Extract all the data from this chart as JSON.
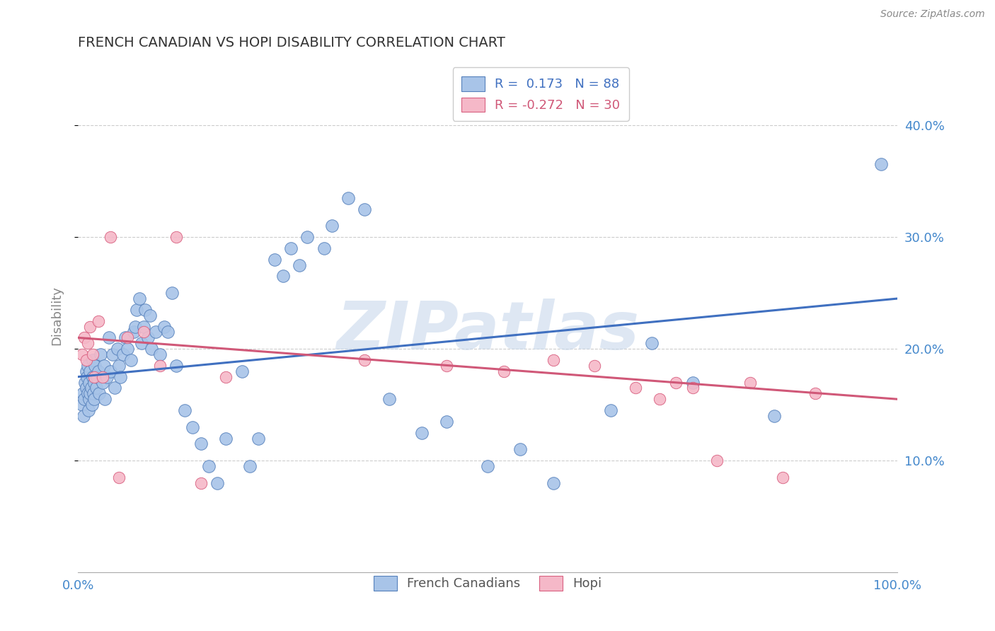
{
  "title": "FRENCH CANADIAN VS HOPI DISABILITY CORRELATION CHART",
  "source": "Source: ZipAtlas.com",
  "ylabel": "Disability",
  "xlim": [
    0.0,
    1.0
  ],
  "ylim": [
    0.0,
    0.46
  ],
  "xtick_vals": [
    0.0,
    1.0
  ],
  "xtick_labels": [
    "0.0%",
    "100.0%"
  ],
  "ytick_vals": [
    0.1,
    0.2,
    0.3,
    0.4
  ],
  "ytick_labels": [
    "10.0%",
    "20.0%",
    "30.0%",
    "40.0%"
  ],
  "blue_color": "#A8C4E8",
  "pink_color": "#F5B8C8",
  "blue_edge_color": "#5580BB",
  "pink_edge_color": "#D96080",
  "blue_line_color": "#4070C0",
  "pink_line_color": "#D05878",
  "blue_R": 0.173,
  "blue_N": 88,
  "pink_R": -0.272,
  "pink_N": 30,
  "blue_scatter_x": [
    0.005,
    0.006,
    0.007,
    0.008,
    0.009,
    0.01,
    0.01,
    0.011,
    0.012,
    0.012,
    0.013,
    0.014,
    0.014,
    0.015,
    0.015,
    0.016,
    0.017,
    0.018,
    0.018,
    0.019,
    0.02,
    0.02,
    0.021,
    0.022,
    0.023,
    0.025,
    0.026,
    0.028,
    0.03,
    0.032,
    0.033,
    0.035,
    0.038,
    0.04,
    0.042,
    0.045,
    0.048,
    0.05,
    0.052,
    0.055,
    0.058,
    0.06,
    0.065,
    0.068,
    0.07,
    0.072,
    0.075,
    0.078,
    0.08,
    0.082,
    0.085,
    0.088,
    0.09,
    0.095,
    0.1,
    0.105,
    0.11,
    0.115,
    0.12,
    0.13,
    0.14,
    0.15,
    0.16,
    0.17,
    0.18,
    0.2,
    0.21,
    0.22,
    0.24,
    0.25,
    0.26,
    0.27,
    0.28,
    0.3,
    0.31,
    0.33,
    0.35,
    0.38,
    0.42,
    0.45,
    0.5,
    0.54,
    0.58,
    0.65,
    0.7,
    0.75,
    0.85,
    0.98
  ],
  "blue_scatter_y": [
    0.15,
    0.16,
    0.14,
    0.155,
    0.17,
    0.18,
    0.165,
    0.175,
    0.16,
    0.185,
    0.145,
    0.155,
    0.17,
    0.16,
    0.18,
    0.165,
    0.15,
    0.175,
    0.19,
    0.16,
    0.155,
    0.17,
    0.185,
    0.165,
    0.175,
    0.18,
    0.16,
    0.195,
    0.17,
    0.185,
    0.155,
    0.175,
    0.21,
    0.18,
    0.195,
    0.165,
    0.2,
    0.185,
    0.175,
    0.195,
    0.21,
    0.2,
    0.19,
    0.215,
    0.22,
    0.235,
    0.245,
    0.205,
    0.22,
    0.235,
    0.21,
    0.23,
    0.2,
    0.215,
    0.195,
    0.22,
    0.215,
    0.25,
    0.185,
    0.145,
    0.13,
    0.115,
    0.095,
    0.08,
    0.12,
    0.18,
    0.095,
    0.12,
    0.28,
    0.265,
    0.29,
    0.275,
    0.3,
    0.29,
    0.31,
    0.335,
    0.325,
    0.155,
    0.125,
    0.135,
    0.095,
    0.11,
    0.08,
    0.145,
    0.205,
    0.17,
    0.14,
    0.365
  ],
  "pink_scatter_x": [
    0.005,
    0.008,
    0.01,
    0.012,
    0.015,
    0.018,
    0.02,
    0.025,
    0.03,
    0.04,
    0.05,
    0.06,
    0.08,
    0.1,
    0.12,
    0.15,
    0.18,
    0.35,
    0.45,
    0.52,
    0.58,
    0.63,
    0.68,
    0.71,
    0.73,
    0.75,
    0.78,
    0.82,
    0.86,
    0.9
  ],
  "pink_scatter_y": [
    0.195,
    0.21,
    0.19,
    0.205,
    0.22,
    0.195,
    0.175,
    0.225,
    0.175,
    0.3,
    0.085,
    0.21,
    0.215,
    0.185,
    0.3,
    0.08,
    0.175,
    0.19,
    0.185,
    0.18,
    0.19,
    0.185,
    0.165,
    0.155,
    0.17,
    0.165,
    0.1,
    0.17,
    0.085,
    0.16
  ],
  "watermark_text": "ZIPatlas",
  "watermark_color": "#C8D8EC",
  "watermark_alpha": 0.6,
  "background_color": "#FFFFFF",
  "grid_color": "#CCCCCC",
  "tick_color": "#4488CC",
  "ylabel_color": "#888888",
  "title_color": "#333333",
  "source_color": "#888888"
}
